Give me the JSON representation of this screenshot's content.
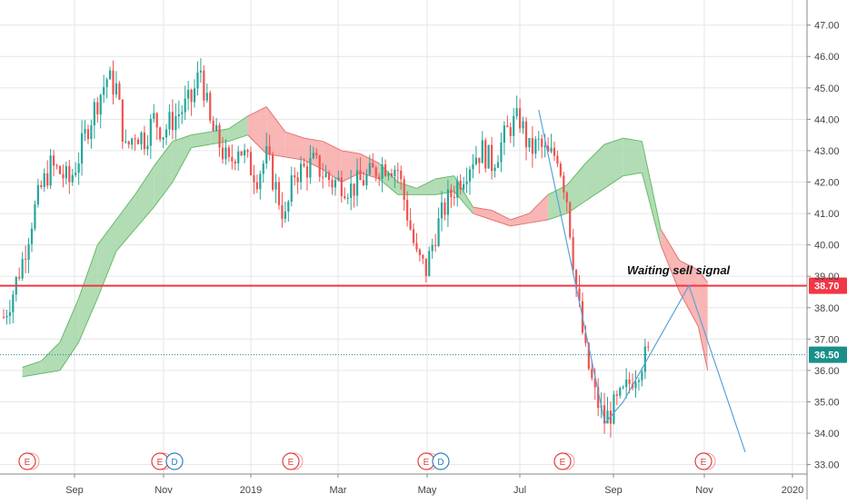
{
  "colors": {
    "up": "#26a69a",
    "down": "#ef5350",
    "cloud_bull_fill": "#a5d6a7",
    "cloud_bull_edge": "#66bb6a",
    "cloud_bear_fill": "#f7a9a8",
    "cloud_bear_edge": "#e57373",
    "resistance": "#f23645",
    "dotted_level": "#1e8a8a",
    "projection": "#5aa3d9",
    "grid": "#e6e6e6",
    "axis_text": "#444444",
    "earnings": "#e23c3c",
    "dividends": "#2a7fc6"
  },
  "chart_data": {
    "type": "candlestick",
    "axis": {
      "y_range": [
        32.7,
        47.8
      ],
      "y_ticks": [
        "33.00",
        "34.00",
        "35.00",
        "36.00",
        "37.00",
        "38.00",
        "39.00",
        "40.00",
        "41.00",
        "42.00",
        "43.00",
        "44.00",
        "45.00",
        "46.00",
        "47.00"
      ],
      "x_ticks": [
        "Sep",
        "Nov",
        "2019",
        "Mar",
        "May",
        "Jul",
        "Sep",
        "Nov",
        "2020"
      ],
      "grid": true
    },
    "price_labels": [
      {
        "name": "resistance",
        "value": "38.70"
      },
      {
        "name": "last",
        "value": "36.50"
      }
    ],
    "levels": {
      "resistance": 38.7,
      "last": 36.5
    },
    "annotation": "Waiting sell signal",
    "events": [
      {
        "x_index": 0,
        "labels": [
          "E"
        ]
      },
      {
        "x_index": 15,
        "labels": [
          "E",
          "D"
        ]
      },
      {
        "x_index": 30,
        "labels": [
          "E"
        ]
      },
      {
        "x_index": 45,
        "labels": [
          "E",
          "D"
        ]
      },
      {
        "x_index": 60,
        "labels": [
          "E"
        ]
      },
      {
        "x_index": 76,
        "labels": [
          "E"
        ]
      }
    ],
    "price_path": [
      [
        0,
        37.7
      ],
      [
        1,
        38.5
      ],
      [
        2,
        39.5
      ],
      [
        3,
        40.8
      ],
      [
        4,
        41.8
      ],
      [
        5,
        42.5
      ],
      [
        6,
        42.3
      ],
      [
        7,
        42.0
      ],
      [
        8,
        42.8
      ],
      [
        9,
        43.8
      ],
      [
        10,
        44.6
      ],
      [
        11,
        45.3
      ],
      [
        12,
        45.0
      ],
      [
        13,
        43.0
      ],
      [
        14,
        43.6
      ],
      [
        15,
        43.4
      ],
      [
        16,
        44.0
      ],
      [
        17,
        43.6
      ],
      [
        18,
        44.0
      ],
      [
        19,
        44.3
      ],
      [
        20,
        44.6
      ],
      [
        21,
        45.6
      ],
      [
        22,
        43.8
      ],
      [
        23,
        43.2
      ],
      [
        24,
        42.5
      ],
      [
        25,
        43.2
      ],
      [
        26,
        42.6
      ],
      [
        27,
        42.2
      ],
      [
        28,
        42.8
      ],
      [
        29,
        41.8
      ],
      [
        30,
        40.8
      ],
      [
        31,
        42.3
      ],
      [
        32,
        42.4
      ],
      [
        33,
        42.6
      ],
      [
        34,
        42.3
      ],
      [
        35,
        42.0
      ],
      [
        36,
        42.0
      ],
      [
        37,
        41.8
      ],
      [
        38,
        42.0
      ],
      [
        39,
        42.2
      ],
      [
        40,
        42.5
      ],
      [
        41,
        42.6
      ],
      [
        42,
        42.4
      ],
      [
        43,
        41.0
      ],
      [
        44,
        39.6
      ],
      [
        45,
        39.2
      ],
      [
        46,
        40.4
      ],
      [
        47,
        41.2
      ],
      [
        48,
        41.8
      ],
      [
        49,
        42.3
      ],
      [
        50,
        42.8
      ],
      [
        51,
        43.0
      ],
      [
        52,
        42.6
      ],
      [
        53,
        43.2
      ],
      [
        54,
        43.8
      ],
      [
        55,
        44.0
      ],
      [
        56,
        43.0
      ],
      [
        57,
        43.2
      ],
      [
        58,
        42.8
      ],
      [
        59,
        42.9
      ],
      [
        60,
        41.5
      ],
      [
        61,
        38.6
      ],
      [
        62,
        36.5
      ],
      [
        63,
        35.2
      ],
      [
        64,
        34.4
      ],
      [
        65,
        34.8
      ],
      [
        66,
        35.2
      ],
      [
        67,
        35.8
      ],
      [
        68,
        36.3
      ],
      [
        69,
        36.6
      ]
    ],
    "cloud": [
      [
        2,
        36.1,
        35.8
      ],
      [
        4,
        36.3,
        35.9
      ],
      [
        6,
        36.9,
        36.0
      ],
      [
        8,
        38.3,
        36.9
      ],
      [
        10,
        40.0,
        38.3
      ],
      [
        12,
        40.8,
        39.8
      ],
      [
        14,
        41.6,
        40.5
      ],
      [
        16,
        42.5,
        41.2
      ],
      [
        18,
        43.3,
        42.0
      ],
      [
        20,
        43.5,
        43.1
      ],
      [
        22,
        43.6,
        43.2
      ],
      [
        24,
        43.7,
        43.3
      ],
      [
        26,
        44.1,
        43.5
      ],
      [
        28,
        44.4,
        42.9
      ],
      [
        30,
        43.6,
        42.8
      ],
      [
        32,
        43.4,
        42.7
      ],
      [
        34,
        43.3,
        42.4
      ],
      [
        36,
        43.0,
        42.0
      ],
      [
        38,
        42.9,
        42.3
      ],
      [
        40,
        42.6,
        42.1
      ],
      [
        42,
        42.0,
        41.6
      ],
      [
        44,
        41.8,
        41.6
      ],
      [
        46,
        42.1,
        41.6
      ],
      [
        48,
        42.2,
        41.7
      ],
      [
        50,
        41.2,
        41.0
      ],
      [
        52,
        41.1,
        40.8
      ],
      [
        54,
        40.8,
        40.6
      ],
      [
        56,
        41.0,
        40.7
      ],
      [
        58,
        41.6,
        40.8
      ],
      [
        60,
        41.9,
        41.0
      ],
      [
        62,
        42.6,
        41.4
      ],
      [
        64,
        43.2,
        41.8
      ],
      [
        66,
        43.4,
        42.2
      ],
      [
        68,
        43.3,
        42.3
      ],
      [
        70,
        40.5,
        40.0
      ],
      [
        72,
        39.5,
        38.5
      ],
      [
        74,
        39.2,
        37.4
      ],
      [
        75,
        38.8,
        36.0
      ]
    ],
    "projection": [
      [
        64,
        34.3
      ],
      [
        66,
        35.0
      ],
      [
        73,
        38.7
      ],
      [
        79,
        33.4
      ]
    ],
    "breakdown_line": [
      [
        57,
        44.3
      ],
      [
        64,
        34.4
      ]
    ]
  }
}
